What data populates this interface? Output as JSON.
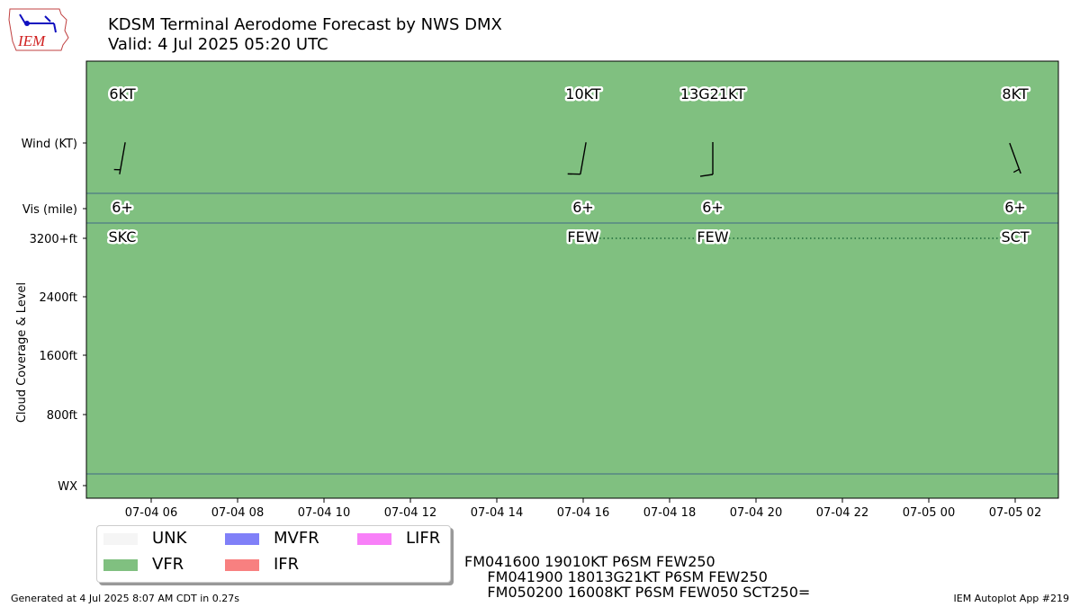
{
  "header": {
    "title": "KDSM Terminal Aerodome Forecast by NWS DMX",
    "valid": "Valid: 4 Jul 2025 05:20 UTC",
    "logo_text": "IEM"
  },
  "chart_data": {
    "type": "timeline",
    "x_range": [
      "2025-07-04T04:30",
      "2025-07-05T03:00"
    ],
    "x_ticks": [
      {
        "t": "2025-07-04T06:00",
        "label": "07-04 06"
      },
      {
        "t": "2025-07-04T08:00",
        "label": "07-04 08"
      },
      {
        "t": "2025-07-04T10:00",
        "label": "07-04 10"
      },
      {
        "t": "2025-07-04T12:00",
        "label": "07-04 12"
      },
      {
        "t": "2025-07-04T14:00",
        "label": "07-04 14"
      },
      {
        "t": "2025-07-04T16:00",
        "label": "07-04 16"
      },
      {
        "t": "2025-07-04T18:00",
        "label": "07-04 18"
      },
      {
        "t": "2025-07-04T20:00",
        "label": "07-04 20"
      },
      {
        "t": "2025-07-04T22:00",
        "label": "07-04 22"
      },
      {
        "t": "2025-07-05T00:00",
        "label": "07-05 00"
      },
      {
        "t": "2025-07-05T02:00",
        "label": "07-05 02"
      }
    ],
    "y_labels": {
      "wind": "Wind (KT)",
      "vis": "Vis (mile)",
      "cloud_3200": "3200+ft",
      "cloud_2400": "2400ft",
      "cloud_1600": "1600ft",
      "cloud_800": "800ft",
      "wx": "WX",
      "cloud_axis_label": "Cloud Coverage & Level"
    },
    "flight_category": "VFR",
    "flight_category_color": "#80c080",
    "periods": [
      {
        "t": "2025-07-04T05:20",
        "wind_label": "6KT",
        "dir": 190,
        "speed": 6,
        "vis": "6+",
        "cloud": "SKC"
      },
      {
        "t": "2025-07-04T16:00",
        "wind_label": "10KT",
        "dir": 190,
        "speed": 10,
        "vis": "6+",
        "cloud": "FEW"
      },
      {
        "t": "2025-07-04T19:00",
        "wind_label": "13G21KT",
        "dir": 180,
        "speed": 13,
        "vis": "6+",
        "cloud": "FEW"
      },
      {
        "t": "2025-07-05T02:00",
        "wind_label": "8KT",
        "dir": 160,
        "speed": 8,
        "vis": "6+",
        "cloud": "SCT"
      }
    ]
  },
  "legend": [
    {
      "label": "UNK",
      "color": "#f5f5f5"
    },
    {
      "label": "VFR",
      "color": "#80c080"
    },
    {
      "label": "MVFR",
      "color": "#8080f8"
    },
    {
      "label": "IFR",
      "color": "#f88080"
    },
    {
      "label": "LIFR",
      "color": "#f880f8"
    }
  ],
  "raw_taf": "FM041600 19010KT P6SM FEW250\n     FM041900 18013G21KT P6SM FEW250\n     FM050200 16008KT P6SM FEW050 SCT250=",
  "footer": {
    "generated": "Generated at 4 Jul 2025 8:07 AM CDT in 0.27s",
    "app": "IEM Autoplot App #219"
  }
}
